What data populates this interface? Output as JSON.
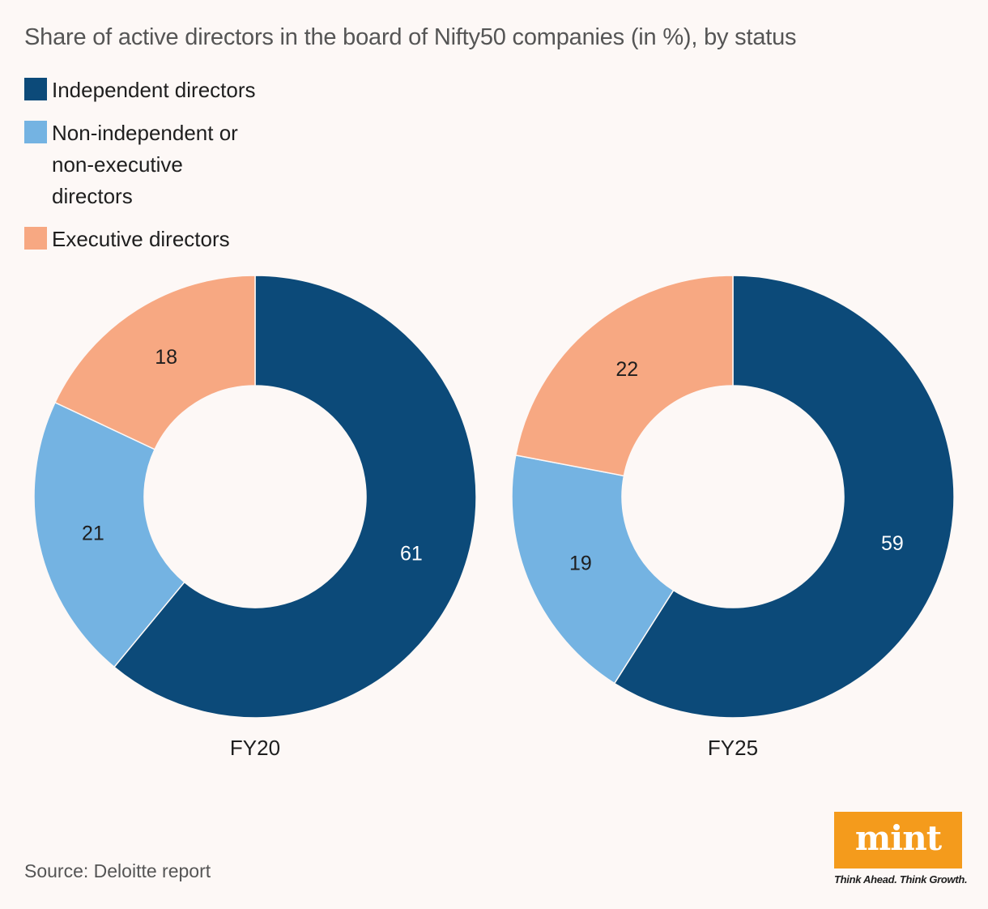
{
  "title": "Share of active directors in the board of Nifty50 companies (in %), by status",
  "source": "Source: Deloitte report",
  "logo": {
    "text": "mint",
    "tagline": "Think Ahead. Think Growth."
  },
  "colors": {
    "independent": "#0c4a79",
    "non_independent": "#74b3e2",
    "executive": "#f7a882",
    "background": "#fdf8f6",
    "logo": "#f49b1c"
  },
  "chart_data": [
    {
      "type": "pie",
      "title": "FY20",
      "categories": [
        "Independent directors",
        "Non-independent or non-executive directors",
        "Executive directors"
      ],
      "values": [
        61,
        21,
        18
      ],
      "labels": [
        "61",
        "21",
        "18"
      ]
    },
    {
      "type": "pie",
      "title": "FY25",
      "categories": [
        "Independent directors",
        "Non-independent or non-executive directors",
        "Executive directors"
      ],
      "values": [
        59,
        19,
        22
      ],
      "labels": [
        "59",
        "19",
        "22"
      ]
    }
  ],
  "legend": [
    {
      "label": "Independent directors",
      "color": "#0c4a79"
    },
    {
      "label": "Non-independent or non-executive directors",
      "color": "#74b3e2"
    },
    {
      "label": "Executive directors",
      "color": "#f7a882"
    }
  ]
}
